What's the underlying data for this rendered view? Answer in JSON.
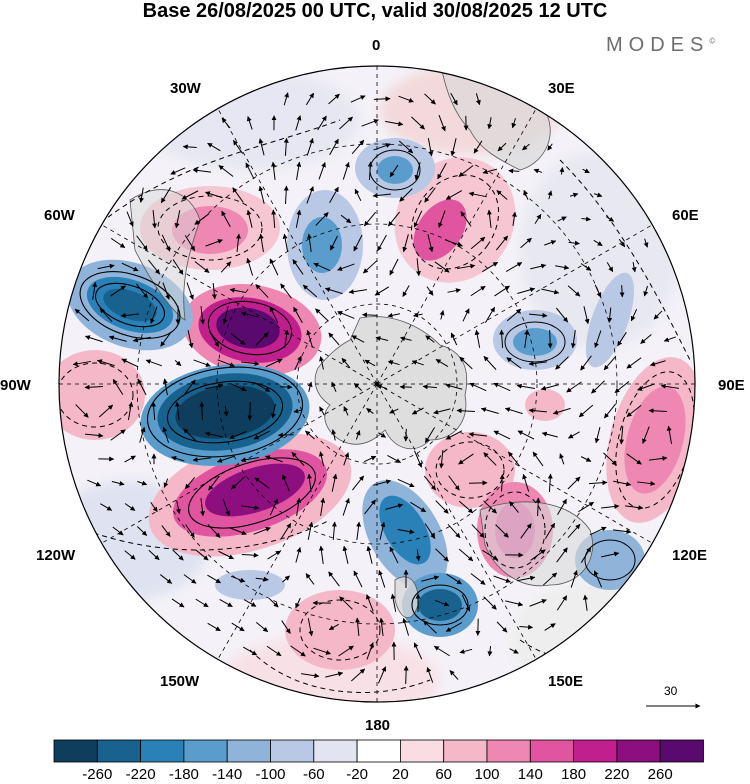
{
  "title": "Base 26/08/2025 00 UTC, valid 30/08/2025 12 UTC",
  "brand": "MODES",
  "brand_mark": "©",
  "longitude_labels": {
    "l0": "0",
    "l30e": "30E",
    "l60e": "60E",
    "l90e": "90E",
    "l120e": "120E",
    "l150e": "150E",
    "l180": "180",
    "l150w": "150W",
    "l120w": "120W",
    "l90w": "90W",
    "l60w": "60W",
    "l30w": "30W"
  },
  "vector_scale": "30",
  "colorbar": {
    "ticks": [
      "-260",
      "-220",
      "-180",
      "-140",
      "-100",
      "-60",
      "-20",
      "20",
      "60",
      "100",
      "140",
      "180",
      "220",
      "260"
    ],
    "colors": [
      "#0f3d5e",
      "#17628f",
      "#2a81b8",
      "#5a9dcc",
      "#8fb3d9",
      "#b9c8e4",
      "#e2e4f1",
      "#ffffff",
      "#f9dde2",
      "#f5b8c8",
      "#ee88b2",
      "#e154a0",
      "#c11f8e",
      "#8c0e7f",
      "#5a0a6e"
    ]
  },
  "colors": {
    "land": "#d8d8d8",
    "frame": "#000000",
    "grid": "#000000"
  }
}
